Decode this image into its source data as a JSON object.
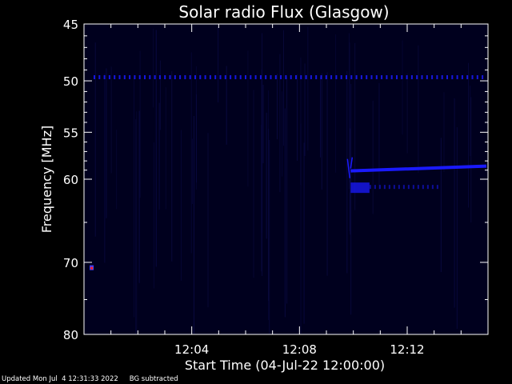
{
  "chart_data": {
    "type": "heatmap",
    "title": "Solar radio Flux (Glasgow)",
    "xlabel": "Start Time (04-Jul-22 12:00:00)",
    "ylabel": "Frequency [MHz]",
    "x_range_minutes": [
      0,
      15
    ],
    "x_ticks": [
      {
        "minute": 4,
        "label": "12:04"
      },
      {
        "minute": 8,
        "label": "12:08"
      },
      {
        "minute": 12,
        "label": "12:12"
      }
    ],
    "y_range_mhz": [
      45,
      80
    ],
    "y_scale": "log",
    "y_ticks": [
      {
        "mhz": 45,
        "label": "45"
      },
      {
        "mhz": 50,
        "label": "50"
      },
      {
        "mhz": 55,
        "label": "55"
      },
      {
        "mhz": 60,
        "label": "60"
      },
      {
        "mhz": 70,
        "label": "70"
      },
      {
        "mhz": 80,
        "label": "80"
      }
    ],
    "background_color": "#00001e",
    "signal_color": "#1a1aff",
    "hot_color": "#ff2020",
    "features": [
      {
        "name": "interference-line",
        "mhz": 49.7,
        "start_min": 0,
        "end_min": 15
      },
      {
        "name": "burst-lane",
        "mhz": 59.0,
        "start_min": 9.9,
        "end_min": 15
      },
      {
        "name": "burst-patch",
        "mhz": 61.0,
        "start_min": 9.9,
        "end_min": 10.6
      },
      {
        "name": "hot-spot",
        "mhz": 70.8,
        "minute": 0.3
      }
    ]
  },
  "footer": {
    "updated": "Updated Mon Jul  4 12:31:33 2022",
    "note": "BG subtracted"
  }
}
